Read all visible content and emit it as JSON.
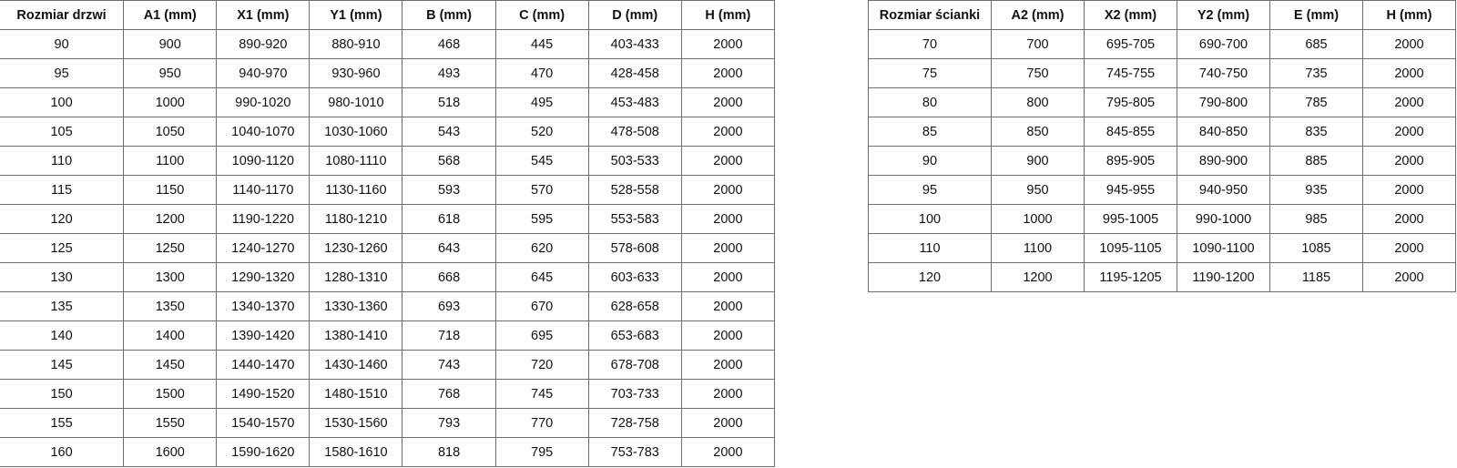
{
  "door_table": {
    "headers": [
      "Rozmiar drzwi",
      "A1 (mm)",
      "X1 (mm)",
      "Y1 (mm)",
      "B (mm)",
      "C (mm)",
      "D (mm)",
      "H (mm)"
    ],
    "rows": [
      [
        "90",
        "900",
        "890-920",
        "880-910",
        "468",
        "445",
        "403-433",
        "2000"
      ],
      [
        "95",
        "950",
        "940-970",
        "930-960",
        "493",
        "470",
        "428-458",
        "2000"
      ],
      [
        "100",
        "1000",
        "990-1020",
        "980-1010",
        "518",
        "495",
        "453-483",
        "2000"
      ],
      [
        "105",
        "1050",
        "1040-1070",
        "1030-1060",
        "543",
        "520",
        "478-508",
        "2000"
      ],
      [
        "110",
        "1100",
        "1090-1120",
        "1080-1110",
        "568",
        "545",
        "503-533",
        "2000"
      ],
      [
        "115",
        "1150",
        "1140-1170",
        "1130-1160",
        "593",
        "570",
        "528-558",
        "2000"
      ],
      [
        "120",
        "1200",
        "1190-1220",
        "1180-1210",
        "618",
        "595",
        "553-583",
        "2000"
      ],
      [
        "125",
        "1250",
        "1240-1270",
        "1230-1260",
        "643",
        "620",
        "578-608",
        "2000"
      ],
      [
        "130",
        "1300",
        "1290-1320",
        "1280-1310",
        "668",
        "645",
        "603-633",
        "2000"
      ],
      [
        "135",
        "1350",
        "1340-1370",
        "1330-1360",
        "693",
        "670",
        "628-658",
        "2000"
      ],
      [
        "140",
        "1400",
        "1390-1420",
        "1380-1410",
        "718",
        "695",
        "653-683",
        "2000"
      ],
      [
        "145",
        "1450",
        "1440-1470",
        "1430-1460",
        "743",
        "720",
        "678-708",
        "2000"
      ],
      [
        "150",
        "1500",
        "1490-1520",
        "1480-1510",
        "768",
        "745",
        "703-733",
        "2000"
      ],
      [
        "155",
        "1550",
        "1540-1570",
        "1530-1560",
        "793",
        "770",
        "728-758",
        "2000"
      ],
      [
        "160",
        "1600",
        "1590-1620",
        "1580-1610",
        "818",
        "795",
        "753-783",
        "2000"
      ]
    ]
  },
  "wall_table": {
    "headers": [
      "Rozmiar ścianki",
      "A2 (mm)",
      "X2 (mm)",
      "Y2 (mm)",
      "E (mm)",
      "H (mm)"
    ],
    "rows": [
      [
        "70",
        "700",
        "695-705",
        "690-700",
        "685",
        "2000"
      ],
      [
        "75",
        "750",
        "745-755",
        "740-750",
        "735",
        "2000"
      ],
      [
        "80",
        "800",
        "795-805",
        "790-800",
        "785",
        "2000"
      ],
      [
        "85",
        "850",
        "845-855",
        "840-850",
        "835",
        "2000"
      ],
      [
        "90",
        "900",
        "895-905",
        "890-900",
        "885",
        "2000"
      ],
      [
        "95",
        "950",
        "945-955",
        "940-950",
        "935",
        "2000"
      ],
      [
        "100",
        "1000",
        "995-1005",
        "990-1000",
        "985",
        "2000"
      ],
      [
        "110",
        "1100",
        "1095-1105",
        "1090-1100",
        "1085",
        "2000"
      ],
      [
        "120",
        "1200",
        "1195-1205",
        "1190-1200",
        "1185",
        "2000"
      ]
    ]
  }
}
